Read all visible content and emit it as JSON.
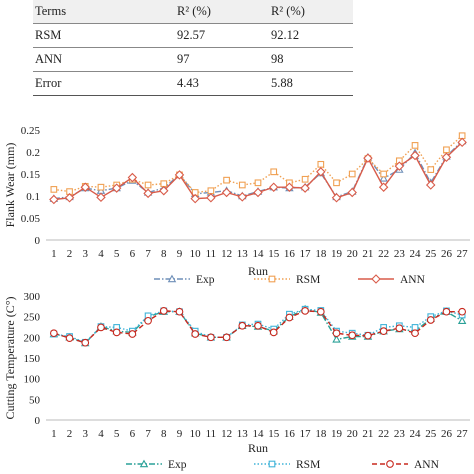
{
  "table": {
    "headers": [
      "Terms",
      "R² (%)",
      "R² (%)"
    ],
    "rows": [
      [
        "RSM",
        "92.57",
        "92.12"
      ],
      [
        "ANN",
        "97",
        "98"
      ],
      [
        "Error",
        "4.43",
        "5.88"
      ]
    ]
  },
  "chart_data": [
    {
      "type": "line",
      "categories": [
        "1",
        "2",
        "3",
        "4",
        "5",
        "6",
        "7",
        "8",
        "9",
        "10",
        "11",
        "12",
        "13",
        "14",
        "15",
        "16",
        "17",
        "18",
        "19",
        "20",
        "21",
        "22",
        "23",
        "24",
        "25",
        "26",
        "27"
      ],
      "xlabel": "Run",
      "ylabel": "Flank Wear (mm)",
      "ylim": [
        0,
        0.25
      ],
      "yticks": [
        "0",
        "0.05",
        "0.1",
        "0.15",
        "0.2",
        "0.25"
      ],
      "grid": false,
      "legend": "bottom",
      "series": [
        {
          "name": "Exp",
          "color": "#6f8fb8",
          "marker": "triangle",
          "dash": "dashdot",
          "values": [
            0.094,
            0.098,
            0.118,
            0.112,
            0.118,
            0.135,
            0.108,
            0.118,
            0.148,
            0.105,
            0.108,
            0.112,
            0.1,
            0.11,
            0.12,
            0.118,
            0.12,
            0.152,
            0.098,
            0.11,
            0.188,
            0.14,
            0.16,
            0.198,
            0.13,
            0.19,
            0.225
          ]
        },
        {
          "name": "RSM",
          "color": "#f0a052",
          "marker": "square",
          "dash": "dotted",
          "values": [
            0.115,
            0.11,
            0.122,
            0.12,
            0.125,
            0.138,
            0.125,
            0.128,
            0.148,
            0.108,
            0.112,
            0.136,
            0.125,
            0.13,
            0.155,
            0.13,
            0.138,
            0.172,
            0.13,
            0.15,
            0.185,
            0.15,
            0.18,
            0.215,
            0.16,
            0.205,
            0.237
          ]
        },
        {
          "name": "ANN",
          "color": "#d95c4a",
          "marker": "diamond",
          "dash": "solid",
          "values": [
            0.092,
            0.096,
            0.12,
            0.097,
            0.118,
            0.142,
            0.106,
            0.112,
            0.148,
            0.094,
            0.096,
            0.108,
            0.098,
            0.108,
            0.12,
            0.12,
            0.118,
            0.155,
            0.096,
            0.108,
            0.186,
            0.12,
            0.168,
            0.192,
            0.125,
            0.188,
            0.222
          ]
        }
      ]
    },
    {
      "type": "line",
      "categories": [
        "1",
        "2",
        "3",
        "4",
        "5",
        "6",
        "7",
        "8",
        "9",
        "10",
        "11",
        "12",
        "13",
        "14",
        "15",
        "16",
        "17",
        "18",
        "19",
        "20",
        "21",
        "22",
        "23",
        "24",
        "25",
        "26",
        "27"
      ],
      "xlabel": "Run",
      "ylabel": "Cutting Temperature (C°)",
      "ylim": [
        0,
        300
      ],
      "yticks": [
        "0",
        "50",
        "100",
        "150",
        "200",
        "250",
        "300"
      ],
      "grid": false,
      "legend": "bottom",
      "series": [
        {
          "name": "Exp",
          "color": "#2aa198",
          "marker": "triangle",
          "dash": "dashdot",
          "values": [
            208,
            200,
            186,
            226,
            215,
            212,
            250,
            262,
            262,
            210,
            200,
            200,
            228,
            226,
            215,
            250,
            268,
            260,
            195,
            202,
            202,
            215,
            220,
            215,
            245,
            262,
            240
          ]
        },
        {
          "name": "RSM",
          "color": "#3fb3d8",
          "marker": "square",
          "dash": "dotted",
          "values": [
            208,
            202,
            188,
            226,
            224,
            215,
            252,
            264,
            262,
            215,
            200,
            200,
            230,
            232,
            220,
            256,
            268,
            265,
            215,
            210,
            205,
            224,
            228,
            224,
            250,
            264,
            254
          ]
        },
        {
          "name": "ANN",
          "color": "#c8281e",
          "marker": "circle",
          "dash": "dashed",
          "values": [
            210,
            198,
            187,
            224,
            212,
            208,
            240,
            264,
            262,
            208,
            200,
            200,
            228,
            228,
            212,
            248,
            264,
            262,
            210,
            205,
            204,
            215,
            222,
            210,
            242,
            262,
            262
          ]
        }
      ]
    }
  ]
}
